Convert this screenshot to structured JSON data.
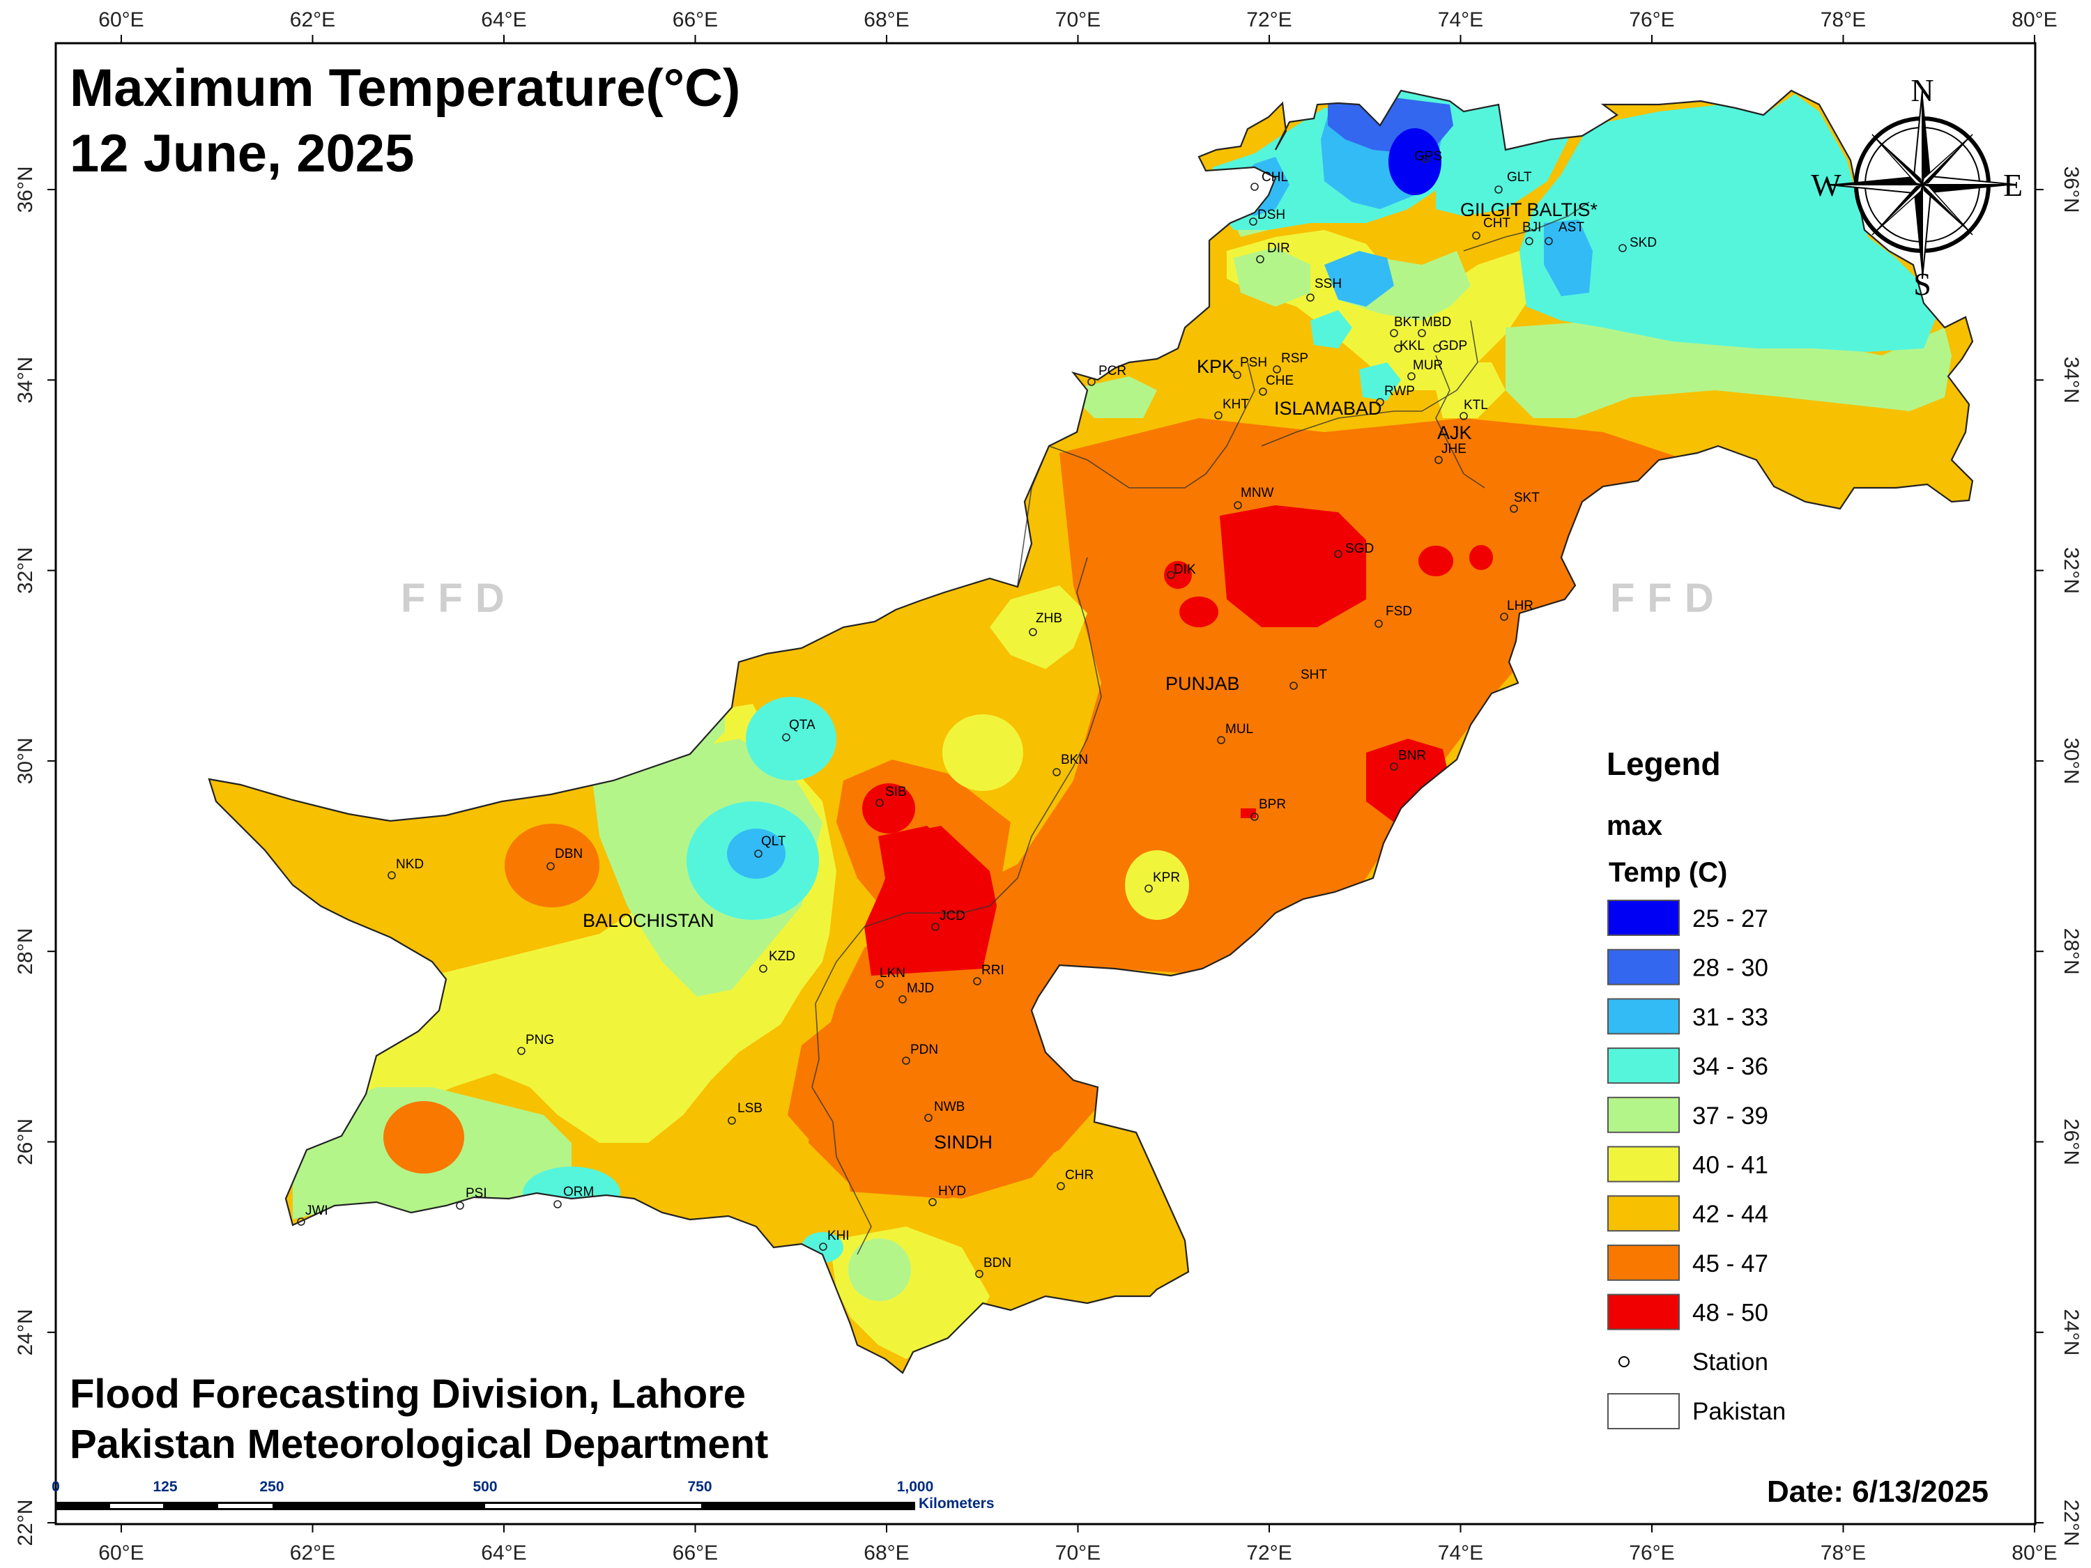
{
  "title": {
    "line1": "Maximum Temperature(°C)",
    "line2": "12 June, 2025"
  },
  "footer": {
    "line1": "Flood Forecasting Division, Lahore",
    "line2": "Pakistan Meteorological Department"
  },
  "date_label": "Date: 6/13/2025",
  "watermark": "FFD",
  "compass": {
    "n": "N",
    "s": "S",
    "e": "E",
    "w": "W"
  },
  "axes": {
    "lon_labels": [
      "60°E",
      "62°E",
      "64°E",
      "66°E",
      "68°E",
      "70°E",
      "72°E",
      "74°E",
      "76°E",
      "78°E",
      "80°E"
    ],
    "lat_labels": [
      "36°N",
      "34°N",
      "32°N",
      "30°N",
      "28°N",
      "26°N",
      "24°N",
      "22°N"
    ]
  },
  "legend": {
    "heading": "Legend",
    "field": "max",
    "unit": "Temp (C)",
    "classes": [
      {
        "label": "25 - 27",
        "color": "#0000f5"
      },
      {
        "label": "28 - 30",
        "color": "#3367f0"
      },
      {
        "label": "31 - 33",
        "color": "#33bbf5"
      },
      {
        "label": "34 - 36",
        "color": "#55f5dc"
      },
      {
        "label": "37 - 39",
        "color": "#b4f58a"
      },
      {
        "label": "40 - 41",
        "color": "#f0f53c"
      },
      {
        "label": "42 - 44",
        "color": "#f7c000"
      },
      {
        "label": "45 - 47",
        "color": "#f87800"
      },
      {
        "label": "48 - 50",
        "color": "#f00000"
      }
    ],
    "station_label": "Station",
    "pakistan_label": "Pakistan"
  },
  "scale_bar": {
    "ticks": [
      "0",
      "125",
      "250",
      "500",
      "750",
      "1,000"
    ],
    "unit": "Kilometers"
  },
  "regions": [
    "GILGIT BALTIS*",
    "KPK",
    "ISLAMABAD",
    "AJK",
    "PUNJAB",
    "BALOCHISTAN",
    "SINDH"
  ],
  "stations": [
    "GPS",
    "CHL",
    "GLT",
    "DSH",
    "CHT",
    "BJI",
    "AST",
    "SKD",
    "DIR",
    "SSH",
    "BKT",
    "MBD",
    "KKL",
    "GDP",
    "PCR",
    "PSH",
    "RSP",
    "MUR",
    "CHE",
    "RWP",
    "KHT",
    "KTL",
    "JHE",
    "MNW",
    "SKT",
    "SGD",
    "DIK",
    "LHR",
    "FSD",
    "ZHB",
    "SHT",
    "PUNJAB",
    "QTA",
    "MUL",
    "BNR",
    "BKN",
    "SIB",
    "BPR",
    "NKD",
    "DBN",
    "QLT",
    "KPR",
    "JCD",
    "KZD",
    "RRI",
    "LKN",
    "MJD",
    "PNG",
    "PDN",
    "LSB",
    "NWB",
    "CHR",
    "PSI",
    "HYD",
    "JWI",
    "ORM",
    "KHI",
    "BDN"
  ]
}
